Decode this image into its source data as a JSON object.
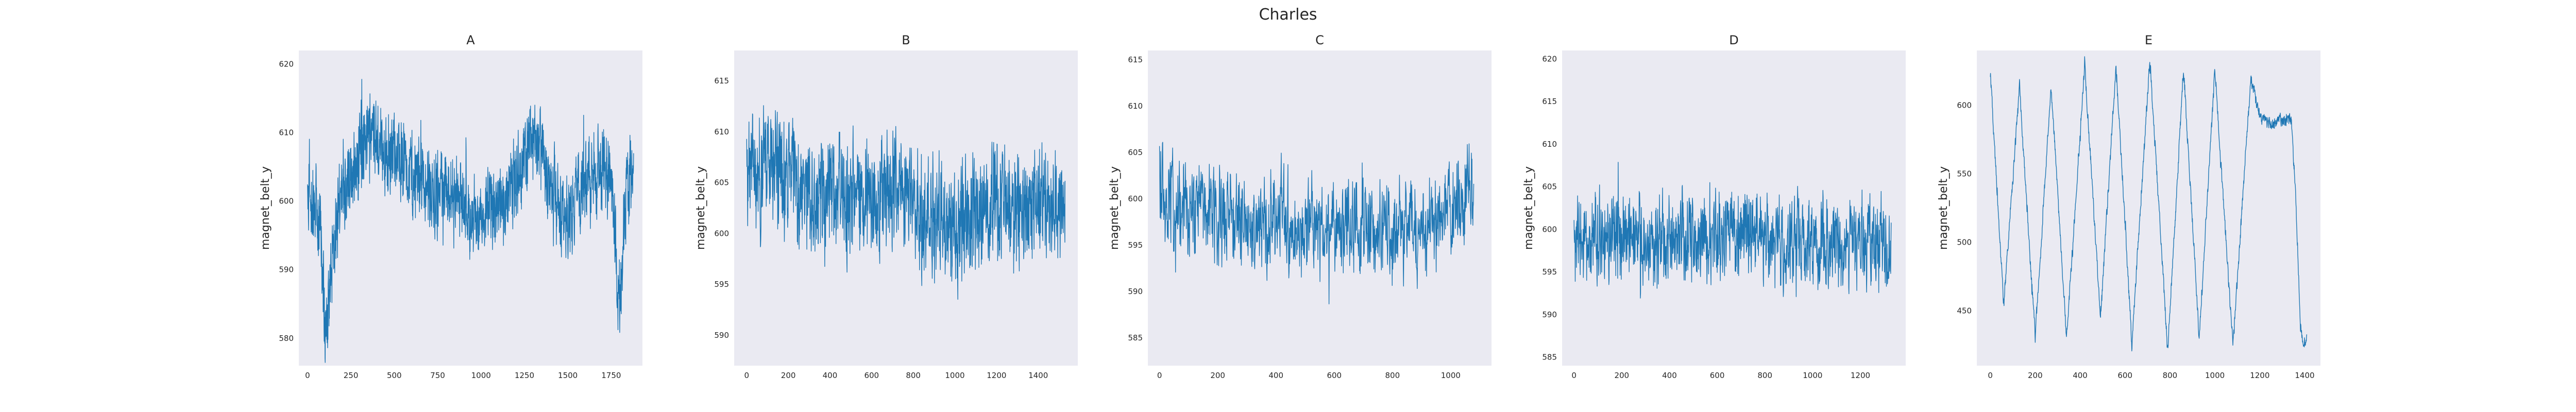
{
  "figure": {
    "suptitle": "Charles"
  },
  "chart_data": [
    {
      "type": "line",
      "title": "A",
      "xlabel": "",
      "ylabel": "magnet_belt_y",
      "n_points": 1880,
      "xlim": [
        -50,
        1930
      ],
      "ylim": [
        576,
        622
      ],
      "xticks": [
        0,
        250,
        500,
        750,
        1000,
        1250,
        1500,
        1750
      ],
      "yticks": [
        580,
        590,
        600,
        610,
        620
      ],
      "series_profile": [
        [
          0,
          601
        ],
        [
          40,
          599
        ],
        [
          70,
          596
        ],
        [
          90,
          589
        ],
        [
          100,
          582
        ],
        [
          110,
          583
        ],
        [
          130,
          589
        ],
        [
          160,
          594
        ],
        [
          200,
          602
        ],
        [
          250,
          604
        ],
        [
          300,
          607
        ],
        [
          350,
          610
        ],
        [
          400,
          609
        ],
        [
          450,
          607
        ],
        [
          500,
          606
        ],
        [
          550,
          605
        ],
        [
          600,
          603
        ],
        [
          650,
          604
        ],
        [
          700,
          602
        ],
        [
          750,
          601
        ],
        [
          800,
          603
        ],
        [
          850,
          600
        ],
        [
          900,
          599
        ],
        [
          950,
          597
        ],
        [
          1000,
          598
        ],
        [
          1050,
          600
        ],
        [
          1100,
          600
        ],
        [
          1150,
          601
        ],
        [
          1200,
          604
        ],
        [
          1250,
          607
        ],
        [
          1300,
          609
        ],
        [
          1350,
          606
        ],
        [
          1400,
          602
        ],
        [
          1450,
          600
        ],
        [
          1500,
          598
        ],
        [
          1550,
          600
        ],
        [
          1600,
          603
        ],
        [
          1650,
          604
        ],
        [
          1700,
          605
        ],
        [
          1750,
          603
        ],
        [
          1770,
          595
        ],
        [
          1790,
          586
        ],
        [
          1805,
          588
        ],
        [
          1830,
          600
        ],
        [
          1879,
          605
        ]
      ]
    },
    {
      "type": "line",
      "title": "B",
      "xlabel": "",
      "ylabel": "magnet_belt_y",
      "n_points": 1530,
      "xlim": [
        -60,
        1590
      ],
      "ylim": [
        587,
        618
      ],
      "xticks": [
        0,
        200,
        400,
        600,
        800,
        1000,
        1200,
        1400
      ],
      "yticks": [
        590,
        595,
        600,
        605,
        610,
        615
      ],
      "series_profile": [
        [
          0,
          606
        ],
        [
          100,
          607
        ],
        [
          200,
          605
        ],
        [
          300,
          604
        ],
        [
          400,
          604
        ],
        [
          500,
          603
        ],
        [
          600,
          604
        ],
        [
          700,
          604
        ],
        [
          800,
          603
        ],
        [
          900,
          601
        ],
        [
          1000,
          601
        ],
        [
          1100,
          602
        ],
        [
          1200,
          603
        ],
        [
          1300,
          602
        ],
        [
          1400,
          603
        ],
        [
          1529,
          603
        ]
      ]
    },
    {
      "type": "line",
      "title": "C",
      "xlabel": "",
      "ylabel": "magnet_belt_y",
      "n_points": 1080,
      "xlim": [
        -40,
        1140
      ],
      "ylim": [
        582,
        616
      ],
      "xticks": [
        0,
        200,
        400,
        600,
        800,
        1000
      ],
      "yticks": [
        585,
        590,
        595,
        600,
        605,
        610,
        615
      ],
      "series_profile": [
        [
          0,
          601
        ],
        [
          100,
          599
        ],
        [
          200,
          598
        ],
        [
          300,
          597
        ],
        [
          400,
          597
        ],
        [
          500,
          597
        ],
        [
          600,
          597
        ],
        [
          700,
          597
        ],
        [
          800,
          596
        ],
        [
          900,
          597
        ],
        [
          1000,
          599
        ],
        [
          1079,
          601
        ]
      ]
    },
    {
      "type": "line",
      "title": "D",
      "xlabel": "",
      "ylabel": "magnet_belt_y",
      "n_points": 1330,
      "xlim": [
        -50,
        1390
      ],
      "ylim": [
        584,
        621
      ],
      "xticks": [
        0,
        200,
        400,
        600,
        800,
        1000,
        1200
      ],
      "yticks": [
        585,
        590,
        595,
        600,
        605,
        610,
        615,
        620
      ],
      "series_profile": [
        [
          0,
          599
        ],
        [
          200,
          599
        ],
        [
          400,
          599
        ],
        [
          600,
          600
        ],
        [
          800,
          599
        ],
        [
          1000,
          598
        ],
        [
          1200,
          599
        ],
        [
          1329,
          598
        ]
      ]
    },
    {
      "type": "line",
      "title": "E",
      "xlabel": "",
      "ylabel": "magnet_belt_y",
      "n_points": 1410,
      "xlim": [
        -60,
        1470
      ],
      "ylim": [
        410,
        640
      ],
      "xticks": [
        0,
        200,
        400,
        600,
        800,
        1000,
        1200,
        1400
      ],
      "yticks": [
        450,
        500,
        550,
        600
      ],
      "series_profile": [
        [
          0,
          624
        ],
        [
          60,
          455
        ],
        [
          130,
          614
        ],
        [
          200,
          430
        ],
        [
          270,
          614
        ],
        [
          340,
          430
        ],
        [
          420,
          630
        ],
        [
          490,
          445
        ],
        [
          560,
          630
        ],
        [
          630,
          425
        ],
        [
          710,
          634
        ],
        [
          790,
          420
        ],
        [
          860,
          628
        ],
        [
          930,
          430
        ],
        [
          1000,
          626
        ],
        [
          1080,
          425
        ],
        [
          1160,
          620
        ],
        [
          1200,
          592
        ],
        [
          1250,
          586
        ],
        [
          1300,
          590
        ],
        [
          1340,
          590
        ],
        [
          1360,
          535
        ],
        [
          1380,
          440
        ],
        [
          1395,
          425
        ],
        [
          1409,
          430
        ]
      ]
    }
  ]
}
